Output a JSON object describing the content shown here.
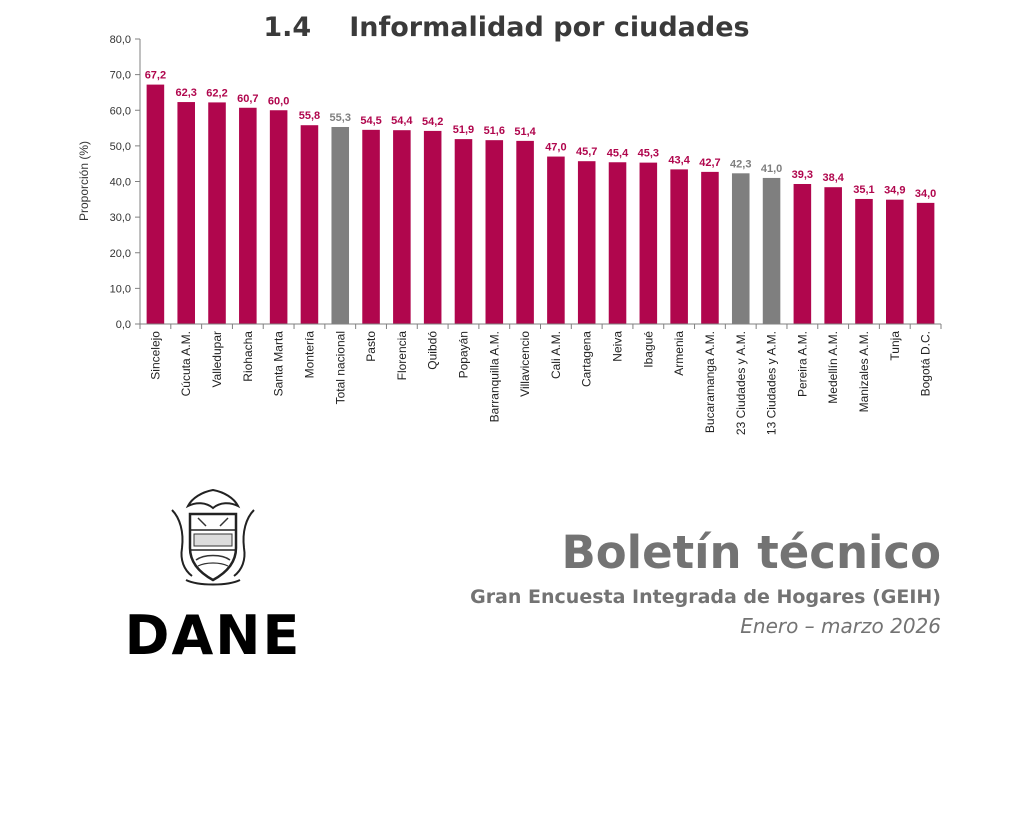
{
  "section": {
    "number": "1.4",
    "title": "Informalidad por ciudades"
  },
  "colors": {
    "city": "#b0064d",
    "aggregate": "#7f7f7f",
    "axis": "#808080",
    "text": "#333333"
  },
  "chart_data": {
    "type": "bar",
    "title": "Informalidad por ciudades",
    "xlabel": "",
    "ylabel": "Proporción (%)",
    "ylim": [
      0,
      80
    ],
    "yticks": [
      "0,0",
      "10,0",
      "20,0",
      "30,0",
      "40,0",
      "50,0",
      "60,0",
      "70,0",
      "80,0"
    ],
    "grid": false,
    "categories": [
      "Sincelejo",
      "Cúcuta A.M.",
      "Valledupar",
      "Riohacha",
      "Santa Marta",
      "Montería",
      "Total nacional",
      "Pasto",
      "Florencia",
      "Quibdó",
      "Popayán",
      "Barranquilla A.M.",
      "Villavicencio",
      "Cali A.M.",
      "Cartagena",
      "Neiva",
      "Ibagué",
      "Armenia",
      "Bucaramanga A.M.",
      "23 Ciudades y A.M.",
      "13 Ciudades y A.M.",
      "Pereira A.M.",
      "Medellín A.M.",
      "Manizales A.M.",
      "Tunja",
      "Bogotá D.C."
    ],
    "values": [
      67.2,
      62.3,
      62.2,
      60.7,
      60.0,
      55.8,
      55.3,
      54.5,
      54.4,
      54.2,
      51.9,
      51.6,
      51.4,
      47.0,
      45.7,
      45.4,
      45.3,
      43.4,
      42.7,
      42.3,
      41.0,
      39.3,
      38.4,
      35.1,
      34.9,
      34.0
    ],
    "value_labels": [
      "67,2",
      "62,3",
      "62,2",
      "60,7",
      "60,0",
      "55,8",
      "55,3",
      "54,5",
      "54,4",
      "54,2",
      "51,9",
      "51,6",
      "51,4",
      "47,0",
      "45,7",
      "45,4",
      "45,3",
      "43,4",
      "42,7",
      "42,3",
      "41,0",
      "39,3",
      "38,4",
      "35,1",
      "34,9",
      "34,0"
    ],
    "aggregate_categories": [
      "Total nacional",
      "23 Ciudades y A.M.",
      "13 Ciudades y A.M."
    ]
  },
  "logo": {
    "wordmark": "DANE",
    "emblem": "coat-of-arms-icon"
  },
  "publication": {
    "title": "Boletín técnico",
    "subtitle": "Gran Encuesta Integrada de Hogares (GEIH)",
    "period": "Enero – marzo 2026"
  }
}
